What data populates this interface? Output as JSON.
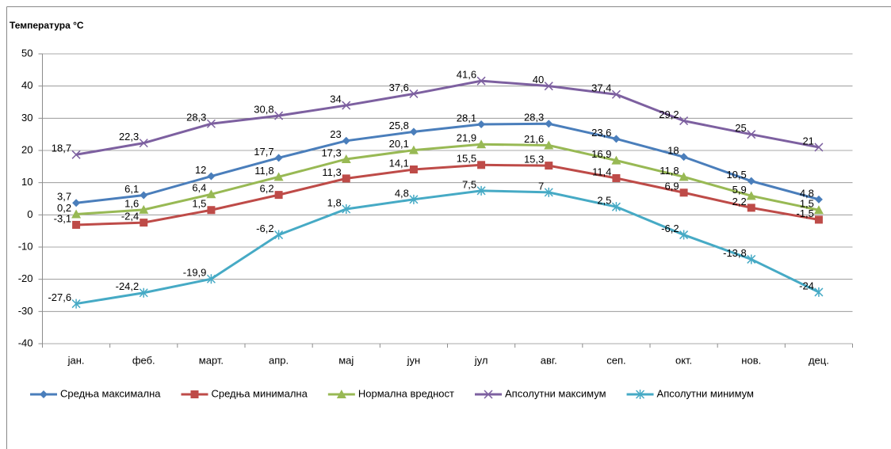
{
  "chart_data": {
    "type": "line",
    "title": "Температура °C",
    "categories": [
      "јан.",
      "феб.",
      "март.",
      "апр.",
      "мај",
      "јун",
      "јул",
      "авг.",
      "сеп.",
      "окт.",
      "нов.",
      "дец."
    ],
    "ylim": [
      -40,
      50
    ],
    "yticks": [
      -40,
      -30,
      -20,
      -10,
      0,
      10,
      20,
      30,
      40,
      50
    ],
    "grid": true,
    "legend": "bottom",
    "series": [
      {
        "name": "Средња максимална",
        "color": "#4a7ebb",
        "marker": "diamond",
        "values": [
          3.7,
          6.1,
          12,
          17.7,
          23,
          25.8,
          28.1,
          28.3,
          23.6,
          18,
          10.5,
          4.8
        ],
        "value_labels": [
          "3,7",
          "6,1",
          "12",
          "17,7",
          "23",
          "25,8",
          "28,1",
          "28,3",
          "23,6",
          "18",
          "10,5",
          "4,8"
        ]
      },
      {
        "name": "Средња минимална",
        "color": "#be4b48",
        "marker": "square",
        "values": [
          -3.1,
          -2.4,
          1.5,
          6.2,
          11.3,
          14.1,
          15.5,
          15.3,
          11.4,
          6.9,
          2.2,
          -1.5
        ],
        "value_labels": [
          "-3,1",
          "-2,4",
          "1,5",
          "6,2",
          "11,3",
          "14,1",
          "15,5",
          "15,3",
          "11,4",
          "6,9",
          "2,2",
          "-1,5"
        ]
      },
      {
        "name": "Нормална вредност",
        "color": "#98b954",
        "marker": "triangle",
        "values": [
          0.2,
          1.6,
          6.4,
          11.8,
          17.3,
          20.1,
          21.9,
          21.6,
          16.9,
          11.8,
          5.9,
          1.5
        ],
        "value_labels": [
          "0,2",
          "1,6",
          "6,4",
          "11,8",
          "17,3",
          "20,1",
          "21,9",
          "21,6",
          "16,9",
          "11,8",
          "5,9",
          "1,5"
        ]
      },
      {
        "name": "Апсолутни максимум",
        "color": "#7d60a0",
        "marker": "x",
        "values": [
          18.7,
          22.3,
          28.3,
          30.8,
          34,
          37.6,
          41.6,
          40,
          37.4,
          29.2,
          25,
          21
        ],
        "value_labels": [
          "18,7",
          "22,3",
          "28,3",
          "30,8",
          "34",
          "37,6",
          "41,6",
          "40",
          "37,4",
          "29,2",
          "25",
          "21"
        ]
      },
      {
        "name": "Апсолутни минимум",
        "color": "#46aac5",
        "marker": "star",
        "values": [
          -27.6,
          -24.2,
          -19.9,
          -6.2,
          1.8,
          4.8,
          7.5,
          7,
          2.5,
          -6.2,
          -13.8,
          -24
        ],
        "value_labels": [
          "-27,6",
          "-24,2",
          "-19,9",
          "-6,2",
          "1,8",
          "4,8",
          "7,5",
          "7",
          "2,5",
          "-6,2",
          "-13,8",
          "-24"
        ]
      }
    ]
  }
}
